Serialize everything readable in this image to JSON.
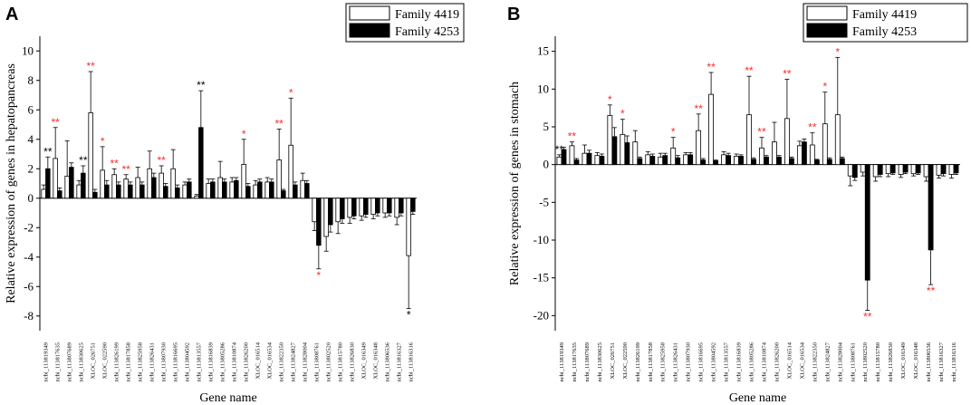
{
  "chart_data": [
    {
      "type": "bar",
      "panel": "A",
      "ylabel": "Relative expression of genes in hepatopancreas",
      "xlabel": "Gene name",
      "ylim": [
        -9,
        11
      ],
      "yticks": [
        -8,
        -6,
        -4,
        -2,
        0,
        2,
        4,
        6,
        8,
        10
      ],
      "legend": [
        "Family 4419",
        "Family 4253"
      ],
      "legend_position": "top-right",
      "categories": [
        "ncbi_113819349",
        "ncbi_113817635",
        "ncbi_113807689",
        "ncbi_113830625",
        "XLOC_026751",
        "XLOC_022590",
        "ncbi_113826199",
        "ncbi_113817858",
        "ncbi_113825958",
        "ncbi_113826431",
        "ncbi_113807930",
        "ncbi_113816695",
        "ncbi_113804592",
        "ncbi_113813557",
        "ncbi_113816839",
        "ncbi_113805286",
        "ncbi_113810874",
        "ncbi_113826200",
        "XLOC_016514",
        "XLOC_016534",
        "ncbi_113822350",
        "ncbi_113824827",
        "ncbi_113828004",
        "ncbi_113808761",
        "ncbi_113802520",
        "ncbi_113815780",
        "ncbi_113826830",
        "XLOC_016349",
        "XLOC_016348",
        "ncbi_113806536",
        "ncbi_113816327",
        "ncbi_113816316"
      ],
      "series": [
        {
          "name": "Family 4419",
          "values": [
            0.6,
            2.7,
            1.5,
            0.9,
            5.8,
            1.9,
            1.6,
            1.3,
            1.4,
            2.0,
            1.7,
            2.0,
            0.9,
            0.15,
            1.0,
            1.4,
            1.1,
            2.3,
            0.9,
            1.1,
            2.6,
            3.6,
            1.2,
            -1.6,
            -2.6,
            -1.6,
            -1.3,
            -1.2,
            -1.1,
            -1.0,
            -1.3,
            -3.9
          ],
          "errors": [
            0.3,
            2.1,
            2.4,
            0.3,
            2.8,
            1.6,
            0.4,
            0.3,
            0.7,
            1.2,
            0.5,
            1.3,
            0.2,
            0.1,
            0.3,
            1.1,
            0.3,
            1.7,
            0.3,
            0.3,
            2.1,
            3.2,
            0.5,
            0.6,
            1.0,
            0.8,
            0.4,
            0.3,
            0.3,
            0.3,
            0.5,
            3.6
          ],
          "sig": [
            "",
            "**",
            "",
            "",
            "**",
            "*",
            "**",
            "**",
            "",
            "",
            "**",
            "",
            "",
            "",
            "",
            "",
            "",
            "*",
            "",
            "",
            "**",
            "*",
            "",
            "",
            "",
            "",
            "",
            "",
            "",
            "",
            "",
            "*"
          ],
          "sig_color": [
            "",
            "red",
            "",
            "",
            "red",
            "red",
            "red",
            "red",
            "",
            "",
            "red",
            "",
            "",
            "",
            "",
            "",
            "",
            "red",
            "",
            "",
            "red",
            "red",
            "",
            "",
            "",
            "",
            "",
            "",
            "",
            "",
            "",
            "black"
          ]
        },
        {
          "name": "Family 4253",
          "values": [
            2.0,
            0.5,
            2.1,
            1.7,
            0.4,
            0.9,
            0.9,
            0.9,
            0.9,
            1.4,
            0.8,
            0.7,
            1.1,
            4.8,
            1.1,
            1.1,
            1.2,
            0.8,
            1.1,
            1.1,
            0.5,
            0.9,
            1.0,
            -3.2,
            -1.8,
            -1.4,
            -1.2,
            -1.1,
            -1.0,
            -1.0,
            -1.0,
            -0.9
          ],
          "errors": [
            0.8,
            0.2,
            0.3,
            0.5,
            0.2,
            0.3,
            0.2,
            0.2,
            0.2,
            0.3,
            0.2,
            0.2,
            0.2,
            2.5,
            0.2,
            0.2,
            0.2,
            0.2,
            0.2,
            0.2,
            0.1,
            0.2,
            0.2,
            1.6,
            0.5,
            0.3,
            0.2,
            0.2,
            0.2,
            0.2,
            0.2,
            0.2
          ],
          "sig": [
            "**",
            "",
            "",
            "**",
            "",
            "",
            "",
            "",
            "",
            "",
            "",
            "",
            "",
            "**",
            "",
            "",
            "",
            "",
            "",
            "",
            "",
            "",
            "",
            "*",
            "",
            "",
            "",
            "",
            "",
            "",
            "",
            ""
          ],
          "sig_color": [
            "black",
            "",
            "",
            "black",
            "",
            "",
            "",
            "",
            "",
            "",
            "",
            "",
            "",
            "black",
            "",
            "",
            "",
            "",
            "",
            "",
            "",
            "",
            "",
            "red",
            "",
            "",
            "",
            "",
            "",
            "",
            "",
            ""
          ]
        }
      ]
    },
    {
      "type": "bar",
      "panel": "B",
      "ylabel": "Relative expression of genes in stomach",
      "xlabel": "Gene name",
      "ylim": [
        -22,
        17
      ],
      "yticks": [
        -20,
        -15,
        -10,
        -5,
        0,
        5,
        10,
        15
      ],
      "legend": [
        "Family 4419",
        "Family 4253"
      ],
      "legend_position": "top-right",
      "categories": [
        "ncbi_113819349",
        "ncbi_113817635",
        "ncbi_113807689",
        "ncbi_113830625",
        "XLOC_026751",
        "XLOC_022590",
        "ncbi_113826199",
        "ncbi_113817858",
        "ncbi_113825958",
        "ncbi_113826431",
        "ncbi_113807930",
        "ncbi_113816695",
        "ncbi_113804592",
        "ncbi_113813557",
        "ncbi_113816839",
        "ncbi_113805286",
        "ncbi_113810874",
        "ncbi_113826200",
        "XLOC_016514",
        "XLOC_016534",
        "ncbi_113822350",
        "ncbi_113824827",
        "ncbi_113828004",
        "ncbi_113808761",
        "ncbi_113802520",
        "ncbi_113815780",
        "ncbi_113826830",
        "XLOC_016349",
        "XLOC_016348",
        "ncbi_113806536",
        "ncbi_113816327",
        "ncbi_113816316"
      ],
      "series": [
        {
          "name": "Family 4419",
          "values": [
            1.0,
            2.5,
            1.5,
            1.2,
            6.5,
            4.0,
            3.0,
            1.3,
            1.0,
            2.2,
            1.3,
            4.5,
            9.3,
            1.3,
            1.1,
            6.6,
            2.2,
            3.0,
            6.1,
            2.5,
            2.6,
            5.4,
            6.6,
            -1.5,
            -1.0,
            -1.6,
            -1.2,
            -1.3,
            -1.2,
            -1.6,
            -1.4,
            -1.3
          ],
          "errors": [
            0.3,
            0.5,
            1.1,
            0.4,
            1.4,
            2.0,
            1.5,
            0.4,
            0.5,
            1.4,
            0.3,
            2.2,
            2.9,
            0.4,
            0.3,
            5.1,
            1.4,
            2.6,
            5.2,
            0.6,
            1.6,
            4.2,
            7.6,
            1.3,
            0.5,
            0.6,
            0.4,
            0.4,
            0.3,
            0.6,
            0.4,
            0.5
          ],
          "sig": [
            "**",
            "**",
            "",
            "",
            "*",
            "*",
            "",
            "",
            "",
            "*",
            "",
            "**",
            "**",
            "",
            "",
            "**",
            "**",
            "",
            "**",
            "",
            "**",
            "*",
            "*",
            "",
            "",
            "",
            "",
            "",
            "",
            "",
            "",
            ""
          ],
          "sig_color": [
            "black",
            "red",
            "",
            "",
            "red",
            "red",
            "",
            "",
            "",
            "red",
            "",
            "red",
            "red",
            "",
            "",
            "red",
            "red",
            "",
            "red",
            "",
            "red",
            "red",
            "red",
            "",
            "",
            "",
            "",
            "",
            "",
            "",
            "",
            ""
          ]
        },
        {
          "name": "Family 4253",
          "values": [
            2.0,
            0.6,
            1.5,
            1.1,
            3.7,
            2.9,
            0.8,
            1.1,
            1.2,
            0.9,
            1.3,
            0.6,
            0.5,
            1.2,
            1.1,
            0.7,
            1.0,
            1.0,
            0.8,
            3.0,
            0.6,
            0.7,
            0.8,
            -1.7,
            -15.3,
            -1.3,
            -1.1,
            -1.0,
            -1.1,
            -11.3,
            -1.2,
            -1.1
          ],
          "errors": [
            0.3,
            0.2,
            0.4,
            0.3,
            1.2,
            0.9,
            0.2,
            0.3,
            0.3,
            0.3,
            0.3,
            0.2,
            0.1,
            0.3,
            0.2,
            0.2,
            0.2,
            0.2,
            0.2,
            0.4,
            0.1,
            0.2,
            0.2,
            0.4,
            4.0,
            0.3,
            0.2,
            0.2,
            0.2,
            4.6,
            0.3,
            0.2
          ],
          "sig": [
            "",
            "",
            "",
            "",
            "",
            "",
            "",
            "",
            "",
            "",
            "",
            "",
            "",
            "",
            "",
            "",
            "",
            "",
            "",
            "",
            "",
            "",
            "",
            "",
            "**",
            "",
            "",
            "",
            "",
            "**",
            "",
            ""
          ],
          "sig_color": [
            "",
            "",
            "",
            "",
            "",
            "",
            "",
            "",
            "",
            "",
            "",
            "",
            "",
            "",
            "",
            "",
            "",
            "",
            "",
            "",
            "",
            "",
            "",
            "",
            "red",
            "",
            "",
            "",
            "",
            "red",
            "",
            ""
          ]
        }
      ]
    }
  ]
}
